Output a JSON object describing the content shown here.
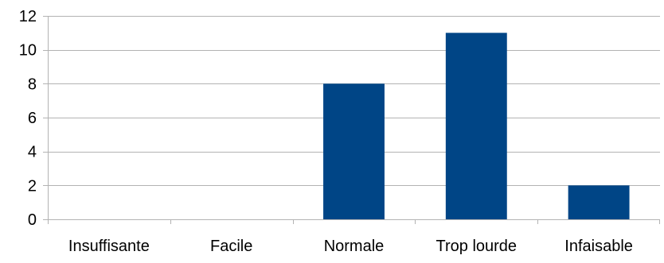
{
  "chart_data": {
    "type": "bar",
    "title": "",
    "xlabel": "",
    "ylabel": "",
    "categories": [
      "Insuffisante",
      "Facile",
      "Normale",
      "Trop lourde",
      "Infaisable"
    ],
    "values": [
      0,
      0,
      8,
      11,
      2
    ],
    "ylim": [
      0,
      12
    ],
    "yticks": [
      "0",
      "2",
      "4",
      "6",
      "8",
      "10",
      "12"
    ],
    "grid": true,
    "legend": "none",
    "colors": {
      "bar": "#004586",
      "grid": "#b3b3b3",
      "axis": "#b3b3b3"
    }
  }
}
